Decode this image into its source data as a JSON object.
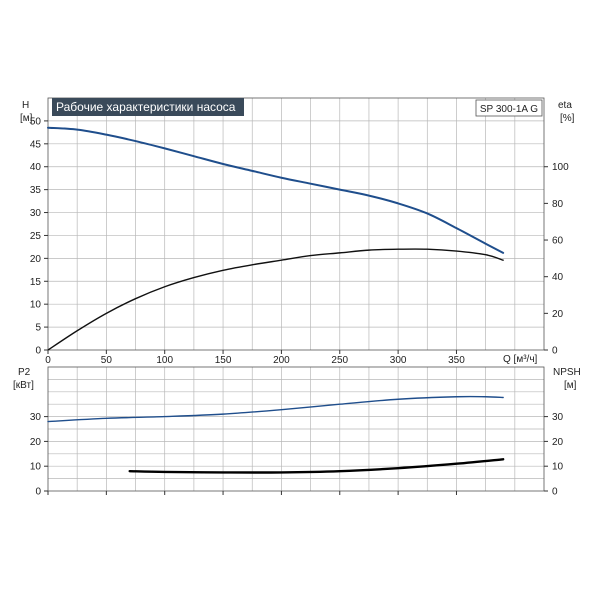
{
  "chart_data": [
    {
      "type": "line",
      "title": "Рабочие характеристики насоса",
      "model_label": "SP 300-1A G",
      "xlabel": "Q [м³/ч]",
      "ylabel": [
        "H",
        "[м]"
      ],
      "y2label": [
        "eta",
        "[%]"
      ],
      "xlim": [
        0,
        425
      ],
      "ylim": [
        0,
        55
      ],
      "y2lim": [
        0,
        137.5
      ],
      "x_ticks": [
        "0",
        "50",
        "100",
        "150",
        "200",
        "250",
        "300",
        "350"
      ],
      "y_ticks": [
        "0",
        "5",
        "10",
        "15",
        "20",
        "25",
        "30",
        "35",
        "40",
        "45",
        "50"
      ],
      "y2_ticks": [
        "0",
        "20",
        "40",
        "60",
        "80",
        "100"
      ],
      "grid": true,
      "colors": {
        "head": "#1f4e8c",
        "efficiency": "#111111"
      },
      "series": [
        {
          "axis": "left",
          "x": [
            0,
            25,
            50,
            75,
            100,
            125,
            150,
            175,
            200,
            225,
            250,
            275,
            300,
            325,
            350,
            375,
            390
          ],
          "values": [
            48.5,
            48.1,
            47.0,
            45.6,
            44.0,
            42.3,
            40.6,
            39.1,
            37.6,
            36.3,
            35.0,
            33.7,
            32.0,
            29.8,
            26.6,
            23.2,
            21.2
          ]
        },
        {
          "axis": "right",
          "x": [
            0,
            25,
            50,
            75,
            100,
            125,
            150,
            175,
            200,
            225,
            250,
            275,
            300,
            325,
            350,
            375,
            390
          ],
          "values": [
            0,
            10.5,
            20,
            28,
            34.5,
            39.5,
            43.5,
            46.5,
            49,
            51.5,
            53,
            54.5,
            55,
            55,
            54,
            52,
            49
          ]
        }
      ]
    },
    {
      "type": "line",
      "ylabel": [
        "P2",
        "[кВт]"
      ],
      "y2label": [
        "NPSH",
        "[м]"
      ],
      "xlim": [
        0,
        425
      ],
      "ylim": [
        0,
        50
      ],
      "y2lim": [
        0,
        50
      ],
      "y_ticks": [
        "0",
        "10",
        "20",
        "30"
      ],
      "y2_ticks": [
        "0",
        "10",
        "20",
        "30"
      ],
      "grid": true,
      "colors": {
        "power": "#1f4e8c",
        "npsh": "#000000"
      },
      "series": [
        {
          "axis": "left",
          "x": [
            0,
            50,
            100,
            150,
            200,
            250,
            300,
            350,
            375,
            390
          ],
          "values": [
            28.0,
            29.3,
            30.0,
            31.0,
            32.8,
            35.0,
            37.0,
            38.0,
            38.0,
            37.7
          ]
        },
        {
          "axis": "right",
          "x": [
            70,
            100,
            150,
            200,
            250,
            300,
            350,
            390
          ],
          "values": [
            8.0,
            7.7,
            7.5,
            7.5,
            8.0,
            9.2,
            11.0,
            12.8
          ]
        }
      ]
    }
  ]
}
